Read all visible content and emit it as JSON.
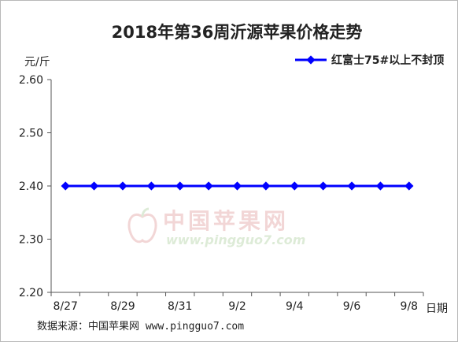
{
  "chart_data": {
    "type": "line",
    "title": "2018年第36周沂源苹果价格走势",
    "ylabel": "元/斤",
    "xlabel": "日期",
    "x": [
      "8/27",
      "8/28",
      "8/29",
      "8/30",
      "8/31",
      "9/1",
      "9/2",
      "9/3",
      "9/4",
      "9/5",
      "9/6",
      "9/7",
      "9/8"
    ],
    "x_tick_labels": [
      "8/27",
      "8/29",
      "8/31",
      "9/2",
      "9/4",
      "9/6",
      "9/8"
    ],
    "ylim": [
      2.2,
      2.6
    ],
    "y_ticks": [
      "2.60",
      "2.50",
      "2.40",
      "2.30",
      "2.20"
    ],
    "grid": false,
    "legend_position": "top-right",
    "series": [
      {
        "name": "红富士75#以上不封顶",
        "color": "#0000ff",
        "values": [
          2.4,
          2.4,
          2.4,
          2.4,
          2.4,
          2.4,
          2.4,
          2.4,
          2.4,
          2.4,
          2.4,
          2.4,
          2.4
        ]
      }
    ]
  },
  "source_text": "数据来源：中国苹果网 www.pingguo7.com",
  "watermark": {
    "name": "中国苹果网",
    "url": "www.pingguo7.com"
  }
}
